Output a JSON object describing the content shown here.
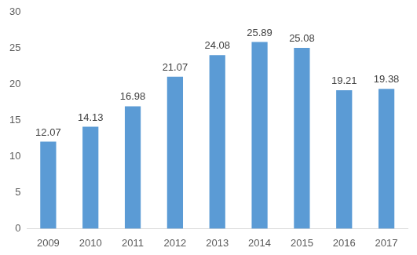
{
  "chart_data": {
    "type": "bar",
    "categories": [
      "2009",
      "2010",
      "2011",
      "2012",
      "2013",
      "2014",
      "2015",
      "2016",
      "2017"
    ],
    "values": [
      12.07,
      14.13,
      16.98,
      21.07,
      24.08,
      25.89,
      25.08,
      19.21,
      19.38
    ],
    "color": "#5b9bd5",
    "ylim": [
      0,
      30
    ],
    "yticks": [
      0,
      5,
      10,
      15,
      20,
      25,
      30
    ],
    "grid": false,
    "data_labels": true
  }
}
